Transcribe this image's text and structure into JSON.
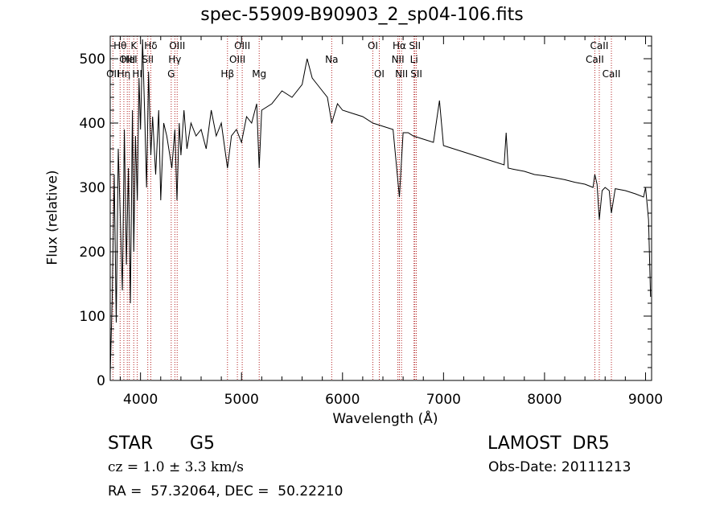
{
  "chart_data": {
    "type": "line",
    "title": "spec-55909-B90903_2_sp04-106.fits",
    "xlabel": "Wavelength (Å)",
    "ylabel": "Flux (relative)",
    "xlim": [
      3700,
      9060
    ],
    "ylim": [
      0,
      535
    ],
    "xticks": [
      4000,
      5000,
      6000,
      7000,
      8000,
      9000
    ],
    "yticks": [
      0,
      100,
      200,
      300,
      400,
      500
    ],
    "grid": false,
    "series": [
      {
        "x": [
          3700,
          3720,
          3740,
          3760,
          3780,
          3800,
          3820,
          3840,
          3860,
          3880,
          3900,
          3920,
          3933,
          3950,
          3968,
          3985,
          4000,
          4020,
          4040,
          4060,
          4080,
          4102,
          4120,
          4150,
          4180,
          4200,
          4230,
          4260,
          4290,
          4310,
          4340,
          4361,
          4383,
          4400,
          4430,
          4460,
          4500,
          4550,
          4600,
          4650,
          4700,
          4750,
          4800,
          4861,
          4900,
          4950,
          5000,
          5050,
          5100,
          5150,
          5175,
          5200,
          5300,
          5400,
          5500,
          5600,
          5650,
          5700,
          5750,
          5800,
          5850,
          5893,
          5950,
          6000,
          6100,
          6200,
          6300,
          6400,
          6500,
          6563,
          6600,
          6650,
          6700,
          6800,
          6900,
          6960,
          7000,
          7100,
          7200,
          7300,
          7400,
          7500,
          7600,
          7620,
          7640,
          7700,
          7800,
          7900,
          8000,
          8100,
          8200,
          8300,
          8400,
          8480,
          8498,
          8520,
          8542,
          8570,
          8600,
          8640,
          8662,
          8700,
          8800,
          8900,
          8980,
          9000,
          9030,
          9050
        ],
        "y": [
          10,
          130,
          320,
          90,
          360,
          250,
          140,
          390,
          180,
          330,
          120,
          420,
          200,
          380,
          280,
          470,
          390,
          530,
          420,
          300,
          480,
          350,
          410,
          320,
          420,
          280,
          400,
          380,
          350,
          330,
          390,
          280,
          400,
          350,
          420,
          360,
          400,
          380,
          390,
          360,
          420,
          380,
          400,
          330,
          380,
          390,
          370,
          410,
          400,
          430,
          330,
          420,
          430,
          450,
          440,
          460,
          500,
          470,
          460,
          450,
          440,
          400,
          430,
          420,
          415,
          410,
          400,
          395,
          390,
          285,
          385,
          385,
          380,
          375,
          370,
          435,
          365,
          360,
          355,
          350,
          345,
          340,
          335,
          385,
          330,
          328,
          325,
          320,
          318,
          315,
          312,
          308,
          305,
          300,
          320,
          305,
          250,
          295,
          300,
          295,
          260,
          298,
          295,
          290,
          285,
          300,
          250,
          130
        ]
      }
    ],
    "line_marks": [
      {
        "x": 3727,
        "label": "OII",
        "row": 3
      },
      {
        "x": 3798,
        "label": "Hθ",
        "row": 1
      },
      {
        "x": 3835,
        "label": "Hη",
        "row": 3
      },
      {
        "x": 3869,
        "label": "OIII",
        "row": 2
      },
      {
        "x": 3889,
        "label": "HeI",
        "row": 2
      },
      {
        "x": 3933,
        "label": "K",
        "row": 1
      },
      {
        "x": 3968,
        "label": "HI",
        "row": 3
      },
      {
        "x": 4072,
        "label": "SII",
        "row": 2
      },
      {
        "x": 4102,
        "label": "Hδ",
        "row": 1
      },
      {
        "x": 4304,
        "label": "G",
        "row": 3
      },
      {
        "x": 4340,
        "label": "Hγ",
        "row": 2
      },
      {
        "x": 4363,
        "label": "OIII",
        "row": 1
      },
      {
        "x": 4861,
        "label": "Hβ",
        "row": 3
      },
      {
        "x": 4959,
        "label": "OIII",
        "row": 2
      },
      {
        "x": 5007,
        "label": "OIII",
        "row": 1
      },
      {
        "x": 5175,
        "label": "Mg",
        "row": 3
      },
      {
        "x": 5893,
        "label": "Na",
        "row": 2
      },
      {
        "x": 6300,
        "label": "OI",
        "row": 1
      },
      {
        "x": 6364,
        "label": "OI",
        "row": 3
      },
      {
        "x": 6548,
        "label": "NII",
        "row": 2
      },
      {
        "x": 6563,
        "label": "Hα",
        "row": 1
      },
      {
        "x": 6584,
        "label": "NII",
        "row": 3
      },
      {
        "x": 6708,
        "label": "Li",
        "row": 2
      },
      {
        "x": 6716,
        "label": "SII",
        "row": 1
      },
      {
        "x": 6731,
        "label": "SII",
        "row": 3
      },
      {
        "x": 8498,
        "label": "CaII",
        "row": 2
      },
      {
        "x": 8542,
        "label": "CaII",
        "row": 1
      },
      {
        "x": 8662,
        "label": "CaII",
        "row": 3
      }
    ]
  },
  "info": {
    "class": "STAR",
    "subclass": "G5",
    "cz": "cz = 1.0 ± 3.3 km/s",
    "radec": "RA =  57.32064, DEC =  50.22210",
    "survey": "LAMOST  DR5",
    "obs_date": "Obs-Date: 20111213"
  },
  "colors": {
    "line": "#000000",
    "marker": "#b22222",
    "axis": "#000000"
  }
}
